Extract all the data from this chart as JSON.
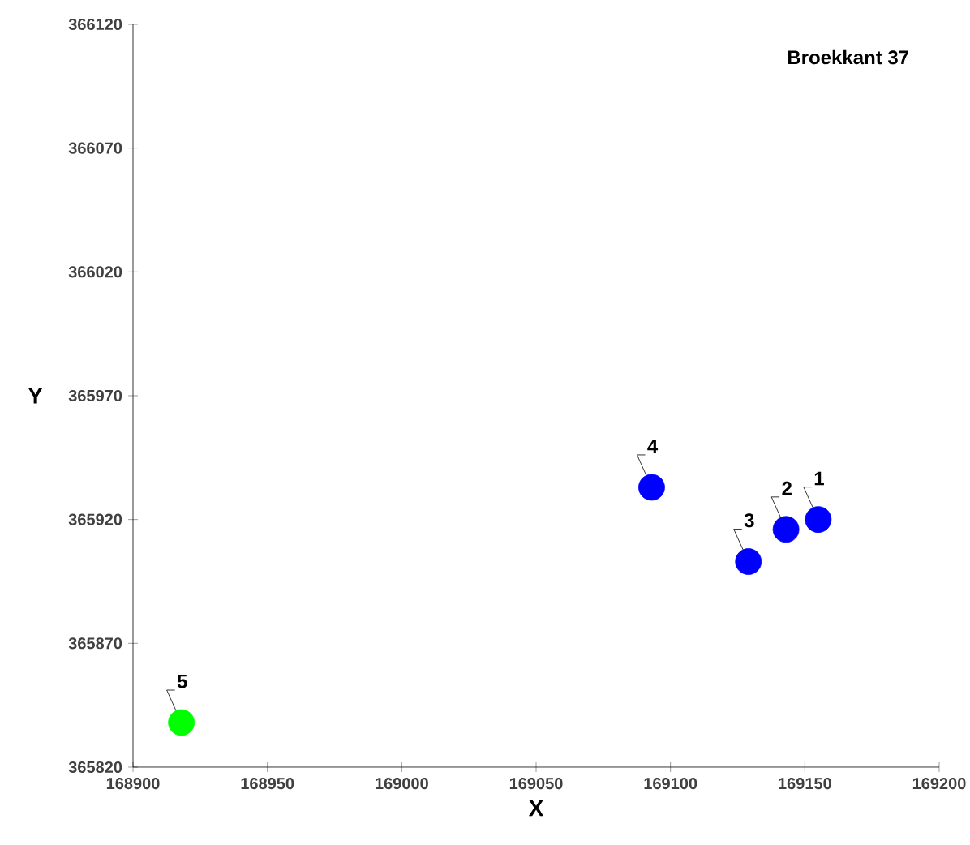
{
  "chart_data": {
    "type": "scatter",
    "title": "Broekkant 37",
    "xlabel": "X",
    "ylabel": "Y",
    "marker": "circle",
    "grid": false,
    "series": [
      {
        "color": "#0000ff",
        "x": [
          169155,
          169143,
          169129,
          169093
        ],
        "values": [
          365920,
          365916,
          365903,
          365933
        ]
      },
      {
        "color": "#00ff00",
        "x": [
          168918
        ],
        "values": [
          365838
        ]
      }
    ],
    "xlim": [
      168900,
      169200
    ],
    "xticks": [
      168900,
      168950,
      169000,
      169050,
      169100,
      169150,
      169200
    ],
    "ylim": [
      365820,
      366120
    ],
    "yticks": [
      365820,
      365870,
      365920,
      365970,
      366020,
      366070,
      366120
    ],
    "annotations": [
      {
        "text": "1",
        "x": 169155,
        "y": 365920
      },
      {
        "text": "2",
        "x": 169143,
        "y": 365916
      },
      {
        "text": "3",
        "x": 169129,
        "y": 365903
      },
      {
        "text": "4",
        "x": 169093,
        "y": 365933
      },
      {
        "text": "5",
        "x": 168918,
        "y": 365838
      }
    ]
  }
}
